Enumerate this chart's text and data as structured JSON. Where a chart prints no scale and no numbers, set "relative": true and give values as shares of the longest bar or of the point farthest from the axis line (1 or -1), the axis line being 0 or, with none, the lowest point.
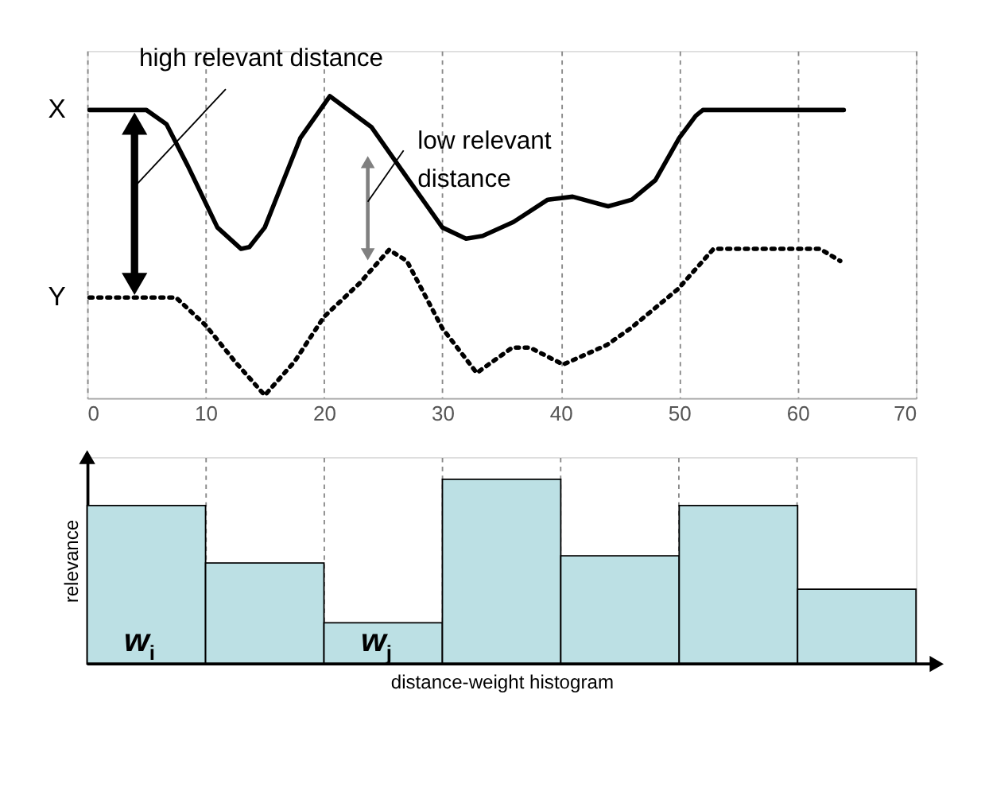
{
  "chart_data": [
    {
      "type": "line",
      "relative": true,
      "xlim": [
        0,
        70
      ],
      "xticks": [
        0,
        10,
        20,
        30,
        40,
        50,
        60,
        70
      ],
      "grid": "x",
      "tick_labels": "x",
      "legend": "left",
      "series": [
        {
          "name": "X",
          "color": "#000000",
          "line_style": "solid",
          "x": [
            0.2,
            5,
            6.7,
            8.5,
            11,
            13,
            13.7,
            15,
            18,
            20.5,
            24,
            27,
            30,
            32,
            33.4,
            36,
            38.9,
            41,
            44,
            46,
            48,
            50,
            51.4,
            52,
            63.9
          ],
          "values": [
            0.954,
            0.954,
            0.907,
            0.769,
            0.565,
            0.494,
            0.5,
            0.565,
            0.861,
            1.0,
            0.898,
            0.731,
            0.565,
            0.528,
            0.537,
            0.583,
            0.657,
            0.667,
            0.635,
            0.657,
            0.722,
            0.861,
            0.935,
            0.954,
            0.954
          ]
        },
        {
          "name": "Y",
          "color": "#000000",
          "line_style": "dotted",
          "x": [
            0.2,
            7.5,
            10,
            12.5,
            15,
            17.5,
            20,
            23,
            25.5,
            27,
            30,
            32.9,
            35.9,
            37.4,
            40.2,
            43.9,
            45.9,
            49.9,
            52.9,
            61.9,
            63.6
          ],
          "values": [
            0.333,
            0.333,
            0.241,
            0.12,
            0.009,
            0.12,
            0.269,
            0.38,
            0.491,
            0.454,
            0.231,
            0.083,
            0.167,
            0.167,
            0.111,
            0.176,
            0.231,
            0.361,
            0.494,
            0.494,
            0.454
          ]
        }
      ],
      "annotations": [
        "high relevant distance",
        "low relevant distance"
      ]
    },
    {
      "type": "bar",
      "relative": true,
      "categories": [
        null,
        null,
        null,
        null,
        null,
        null,
        null
      ],
      "grid": "x",
      "tick_labels": false,
      "values": [
        0.858,
        0.547,
        0.223,
        1.0,
        0.586,
        0.858,
        0.405
      ],
      "color": "#bce0e4",
      "xlabel": "distance-weight histogram",
      "ylabel": "relevance",
      "annotations": [
        "w$_{i}$",
        "w$_{j}$"
      ]
    }
  ]
}
